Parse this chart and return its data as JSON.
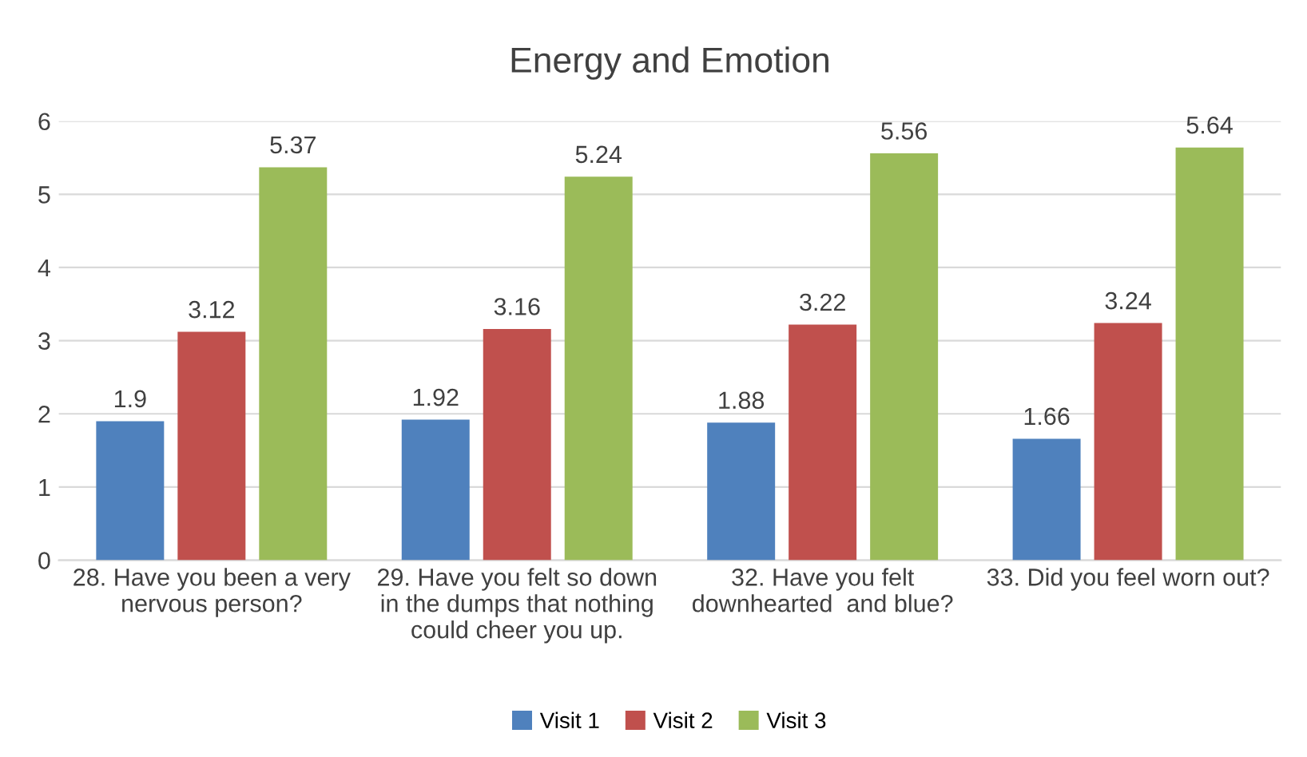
{
  "chart_data": {
    "type": "bar",
    "title": "Energy and Emotion",
    "categories": [
      "28. Have you been a very\nnervous person?",
      "29. Have you felt so down\nin the dumps that nothing\ncould cheer you up.",
      "32. Have you felt\ndownhearted  and blue?",
      "33. Did you feel worn out?"
    ],
    "series": [
      {
        "name": "Visit 1",
        "color": "#4f81bd",
        "values": [
          1.9,
          1.92,
          1.88,
          1.66
        ]
      },
      {
        "name": "Visit 2",
        "color": "#c0504d",
        "values": [
          3.12,
          3.16,
          3.22,
          3.24
        ]
      },
      {
        "name": "Visit 3",
        "color": "#9bbb59",
        "values": [
          5.37,
          5.24,
          5.56,
          5.64
        ]
      }
    ],
    "ylim": [
      0,
      6
    ],
    "yticks": [
      0,
      1,
      2,
      3,
      4,
      5,
      6
    ],
    "grid": "y",
    "legend": "bottom",
    "data_labels": true
  }
}
